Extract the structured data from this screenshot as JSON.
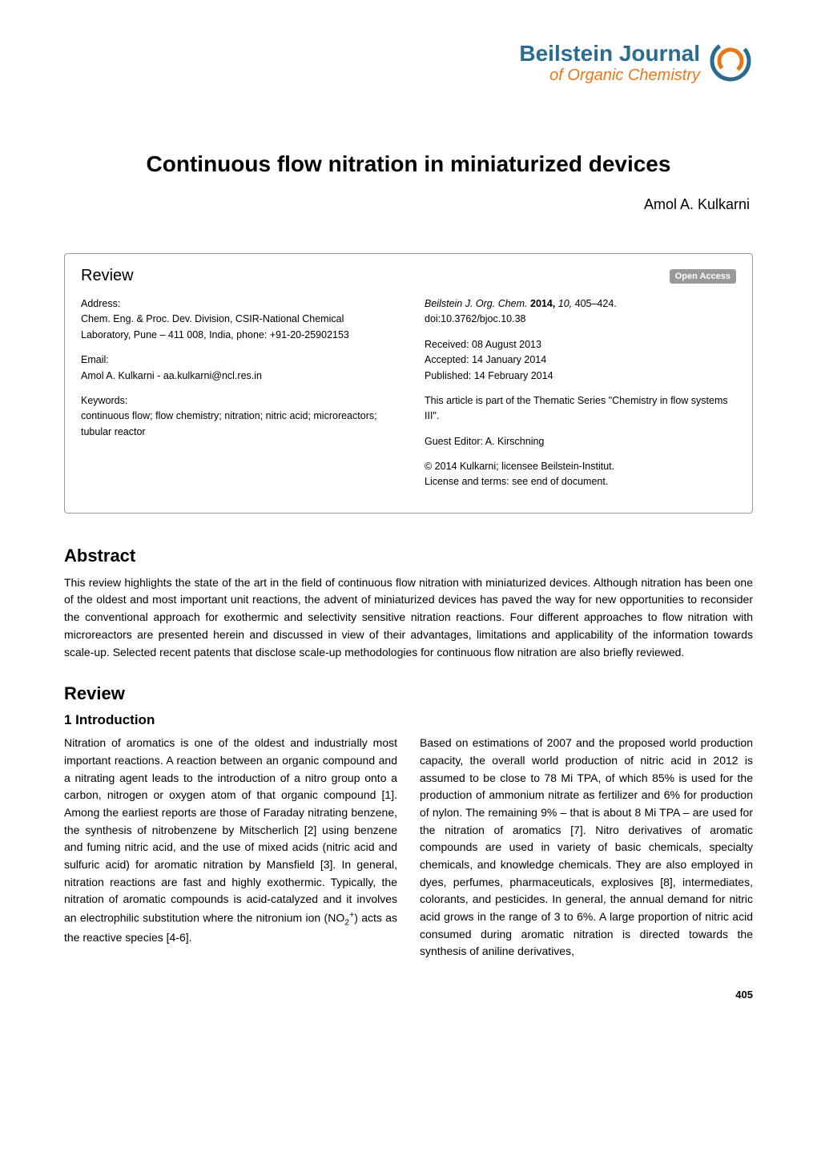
{
  "logo": {
    "title": "Beilstein Journal",
    "subtitle": "of Organic Chemistry",
    "circle_color_outer": "#2a6b8f",
    "circle_color_inner": "#e67817"
  },
  "article": {
    "title": "Continuous flow nitration in miniaturized devices",
    "author": "Amol A. Kulkarni"
  },
  "info_box": {
    "review_label": "Review",
    "open_access": "Open Access",
    "left": {
      "address_label": "Address:",
      "address_text": "Chem. Eng. & Proc. Dev. Division, CSIR-National Chemical Laboratory, Pune – 411 008, India, phone: +91-20-25902153",
      "email_label": "Email:",
      "email_text": "Amol A. Kulkarni - aa.kulkarni@ncl.res.in",
      "keywords_label": "Keywords:",
      "keywords_text": "continuous flow; flow chemistry; nitration; nitric acid; microreactors; tubular reactor"
    },
    "right": {
      "citation_prefix": "Beilstein J. Org. Chem. ",
      "citation_year_vol": "2014,",
      "citation_vol_italic": " 10,",
      "citation_pages": " 405–424.",
      "doi": "doi:10.3762/bjoc.10.38",
      "received": "Received: 08 August 2013",
      "accepted": "Accepted: 14 January 2014",
      "published": "Published: 14 February 2014",
      "thematic": "This article is part of the Thematic Series \"Chemistry in flow systems III\".",
      "guest_editor": "Guest Editor: A. Kirschning",
      "copyright": "© 2014 Kulkarni; licensee Beilstein-Institut.",
      "license": "License and terms: see end of document."
    }
  },
  "abstract": {
    "heading": "Abstract",
    "text": "This review highlights the state of the art in the field of continuous flow nitration with miniaturized devices. Although nitration has been one of the oldest and most important unit reactions, the advent of miniaturized devices has paved the way for new opportunities to reconsider the conventional approach for exothermic and selectivity sensitive nitration reactions. Four different approaches to flow nitration with microreactors are presented herein and discussed in view of their advantages, limitations and applicability of the information towards scale-up. Selected recent patents that disclose scale-up methodologies for continuous flow nitration are also briefly reviewed."
  },
  "review": {
    "heading": "Review",
    "introduction_heading": "1 Introduction",
    "col1_html": "Nitration of aromatics is one of the oldest and industrially most important reactions. A reaction between an organic compound and a nitrating agent leads to the introduction of a nitro group onto a carbon, nitrogen or oxygen atom of that organic compound [1]. Among the earliest reports are those of Faraday nitrating benzene, the synthesis of nitrobenzene by Mitscherlich [2] using benzene and fuming nitric acid, and the use of mixed acids (nitric acid and sulfuric acid) for aromatic nitration by Mansfield [3]. In general, nitration reactions are fast and highly exothermic. Typically, the nitration of aromatic compounds is acid-catalyzed and it involves an electrophilic substitution where the nitronium ion (NO<sub>2</sub><sup>+</sup>) acts as the reactive species [4-6].",
    "col2_html": "Based on estimations of 2007 and the proposed world production capacity, the overall world production of nitric acid in 2012 is assumed to be close to 78 Mi TPA, of which 85% is used for the production of ammonium nitrate as fertilizer and 6% for production of nylon. The remaining 9% – that is about 8 Mi TPA – are used for the nitration of aromatics [7]. Nitro derivatives of aromatic compounds are used in variety of basic chemicals, specialty chemicals, and knowledge chemicals. They are also employed in dyes, perfumes, pharmaceuticals, explosives [8], intermediates, colorants, and pesticides. In general, the annual demand for nitric acid grows in the range of 3 to 6%. A large proportion of nitric acid consumed during aromatic nitration is directed towards the synthesis of aniline derivatives,"
  },
  "page_number": "405"
}
